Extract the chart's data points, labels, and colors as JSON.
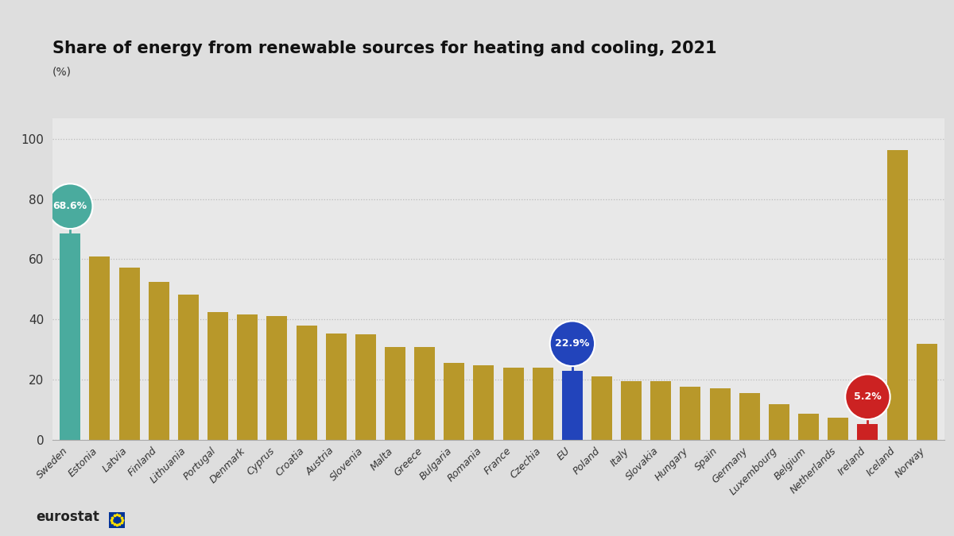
{
  "title": "Share of energy from renewable sources for heating and cooling, 2021",
  "pct_label": "(%)",
  "categories": [
    "Sweden",
    "Estonia",
    "Latvia",
    "Finland",
    "Lithuania",
    "Portugal",
    "Denmark",
    "Cyprus",
    "Croatia",
    "Austria",
    "Slovenia",
    "Malta",
    "Greece",
    "Bulgaria",
    "Romania",
    "France",
    "Czechia",
    "EU",
    "Poland",
    "Italy",
    "Slovakia",
    "Hungary",
    "Spain",
    "Germany",
    "Luxembourg",
    "Belgium",
    "Netherlands",
    "Ireland",
    "Iceland",
    "Norway"
  ],
  "values": [
    68.6,
    61.0,
    57.3,
    52.5,
    48.1,
    42.5,
    41.6,
    41.0,
    38.0,
    35.3,
    35.0,
    30.7,
    30.7,
    25.5,
    24.7,
    23.8,
    23.8,
    22.9,
    20.9,
    19.4,
    19.3,
    17.5,
    17.0,
    15.4,
    11.7,
    8.7,
    7.3,
    5.2,
    96.4,
    31.9
  ],
  "color_default": "#b8982a",
  "color_sweden": "#4aab9e",
  "color_eu": "#2244bb",
  "color_ireland": "#cc2222",
  "bg_color": "#dedede",
  "plot_bg_color": "#e8e8e8",
  "grid_color": "#bbbbbb",
  "ylim": [
    0,
    107
  ],
  "yticks": [
    0,
    20,
    40,
    60,
    80,
    100
  ],
  "title_fontsize": 15,
  "tick_fontsize": 9,
  "highlights": [
    {
      "country": "Sweden",
      "idx": 0,
      "value": 68.6,
      "label": "68.6%",
      "color": "#4aab9e"
    },
    {
      "country": "EU",
      "idx": 17,
      "value": 22.9,
      "label": "22.9%",
      "color": "#2244bb"
    },
    {
      "country": "Ireland",
      "idx": 27,
      "value": 5.2,
      "label": "5.2%",
      "color": "#cc2222"
    }
  ]
}
